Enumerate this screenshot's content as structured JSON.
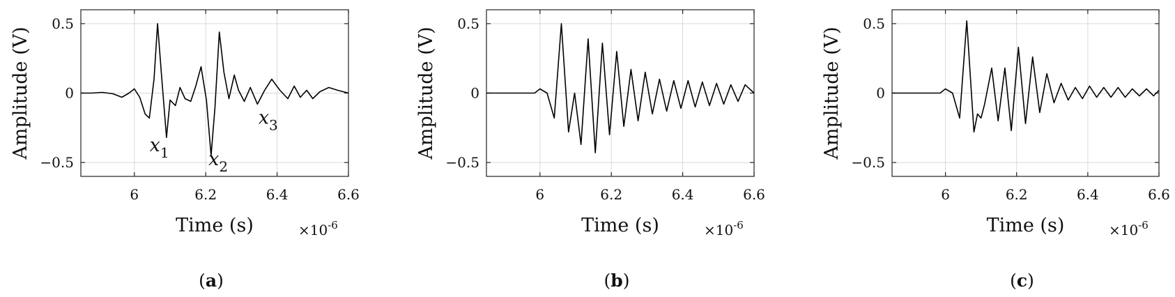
{
  "chart_data": [
    {
      "type": "line",
      "caption": "(a)",
      "caption_letter": "a",
      "xlabel": "Time (s)",
      "ylabel": "Amplitude (V)",
      "x_exponent_label": "×10",
      "x_exponent_power": "-6",
      "xlim": [
        5.85,
        6.6
      ],
      "ylim": [
        -0.6,
        0.6
      ],
      "xticks": [
        {
          "value": 6.0,
          "label": "6"
        },
        {
          "value": 6.2,
          "label": "6.2"
        },
        {
          "value": 6.4,
          "label": "6.4"
        },
        {
          "value": 6.6,
          "label": "6.6"
        }
      ],
      "yticks": [
        {
          "value": 0.5,
          "label": "0.5"
        },
        {
          "value": 0.0,
          "label": "0"
        },
        {
          "value": -0.5,
          "label": "−0.5"
        }
      ],
      "grid": true,
      "annotations": [
        {
          "base": "x",
          "sub": "1",
          "x": 6.07,
          "y": -0.42
        },
        {
          "base": "x",
          "sub": "2",
          "x": 6.235,
          "y": -0.52
        },
        {
          "base": "x",
          "sub": "3",
          "x": 6.375,
          "y": -0.22
        }
      ],
      "series": [
        {
          "x": [
            5.85,
            5.88,
            5.91,
            5.94,
            5.965,
            5.985,
            6.0,
            6.015,
            6.03,
            6.042,
            6.055,
            6.065,
            6.077,
            6.09,
            6.1,
            6.115,
            6.128,
            6.142,
            6.158,
            6.172,
            6.187,
            6.202,
            6.215,
            6.226,
            6.238,
            6.251,
            6.265,
            6.28,
            6.292,
            6.308,
            6.325,
            6.345,
            6.365,
            6.385,
            6.408,
            6.43,
            6.448,
            6.465,
            6.483,
            6.5,
            6.52,
            6.545,
            6.57,
            6.6
          ],
          "y": [
            0.0,
            0.0,
            0.005,
            -0.005,
            -0.03,
            0.0,
            0.03,
            -0.03,
            -0.15,
            -0.18,
            0.1,
            0.5,
            0.1,
            -0.32,
            -0.05,
            -0.09,
            0.04,
            -0.04,
            -0.06,
            0.05,
            0.19,
            -0.05,
            -0.45,
            -0.1,
            0.44,
            0.15,
            -0.04,
            0.13,
            0.02,
            -0.06,
            0.04,
            -0.08,
            0.02,
            0.1,
            0.02,
            -0.04,
            0.05,
            -0.03,
            0.02,
            -0.04,
            0.01,
            0.04,
            0.02,
            0.0
          ]
        }
      ]
    },
    {
      "type": "line",
      "caption": "(b)",
      "caption_letter": "b",
      "xlabel": "Time (s)",
      "ylabel": "Amplitude (V)",
      "x_exponent_label": "×10",
      "x_exponent_power": "-6",
      "xlim": [
        5.85,
        6.6
      ],
      "ylim": [
        -0.6,
        0.6
      ],
      "xticks": [
        {
          "value": 6.0,
          "label": "6"
        },
        {
          "value": 6.2,
          "label": "6.2"
        },
        {
          "value": 6.4,
          "label": "6.4"
        },
        {
          "value": 6.6,
          "label": "6.6"
        }
      ],
      "yticks": [
        {
          "value": 0.5,
          "label": "0.5"
        },
        {
          "value": 0.0,
          "label": "0"
        },
        {
          "value": -0.5,
          "label": "−0.5"
        }
      ],
      "grid": true,
      "annotations": [],
      "series": [
        {
          "x": [
            5.85,
            5.9,
            5.95,
            5.985,
            6.0,
            6.02,
            6.04,
            6.06,
            6.08,
            6.097,
            6.115,
            6.135,
            6.155,
            6.175,
            6.195,
            6.215,
            6.235,
            6.255,
            6.275,
            6.295,
            6.315,
            6.335,
            6.355,
            6.375,
            6.395,
            6.415,
            6.435,
            6.455,
            6.475,
            6.495,
            6.515,
            6.535,
            6.555,
            6.575,
            6.6
          ],
          "y": [
            0.0,
            0.0,
            0.0,
            0.0,
            0.03,
            0.0,
            -0.18,
            0.5,
            -0.28,
            0.0,
            -0.37,
            0.39,
            -0.43,
            0.36,
            -0.3,
            0.3,
            -0.24,
            0.17,
            -0.2,
            0.15,
            -0.15,
            0.1,
            -0.13,
            0.09,
            -0.11,
            0.09,
            -0.1,
            0.08,
            -0.09,
            0.07,
            -0.08,
            0.06,
            -0.06,
            0.06,
            0.0
          ]
        }
      ]
    },
    {
      "type": "line",
      "caption": "(c)",
      "caption_letter": "c",
      "xlabel": "Time (s)",
      "ylabel": "Amplitude (V)",
      "x_exponent_label": "×10",
      "x_exponent_power": "-6",
      "xlim": [
        5.85,
        6.6
      ],
      "ylim": [
        -0.6,
        0.6
      ],
      "xticks": [
        {
          "value": 6.0,
          "label": "6"
        },
        {
          "value": 6.2,
          "label": "6.2"
        },
        {
          "value": 6.4,
          "label": "6.4"
        },
        {
          "value": 6.6,
          "label": "6.6"
        }
      ],
      "yticks": [
        {
          "value": 0.5,
          "label": "0.5"
        },
        {
          "value": 0.0,
          "label": "0"
        },
        {
          "value": -0.5,
          "label": "−0.5"
        }
      ],
      "grid": true,
      "annotations": [],
      "series": [
        {
          "x": [
            5.85,
            5.9,
            5.95,
            5.985,
            6.0,
            6.02,
            6.04,
            6.06,
            6.08,
            6.09,
            6.1,
            6.11,
            6.13,
            6.148,
            6.167,
            6.185,
            6.205,
            6.225,
            6.245,
            6.265,
            6.285,
            6.305,
            6.325,
            6.345,
            6.365,
            6.385,
            6.405,
            6.425,
            6.445,
            6.465,
            6.485,
            6.505,
            6.525,
            6.545,
            6.565,
            6.585,
            6.6
          ],
          "y": [
            0.0,
            0.0,
            0.0,
            0.0,
            0.03,
            0.0,
            -0.18,
            0.52,
            -0.28,
            -0.15,
            -0.18,
            -0.08,
            0.18,
            -0.2,
            0.18,
            -0.27,
            0.33,
            -0.22,
            0.26,
            -0.14,
            0.14,
            -0.07,
            0.07,
            -0.05,
            0.04,
            -0.04,
            0.05,
            -0.03,
            0.04,
            -0.03,
            0.04,
            -0.03,
            0.03,
            -0.02,
            0.03,
            -0.02,
            0.02
          ]
        }
      ]
    }
  ]
}
